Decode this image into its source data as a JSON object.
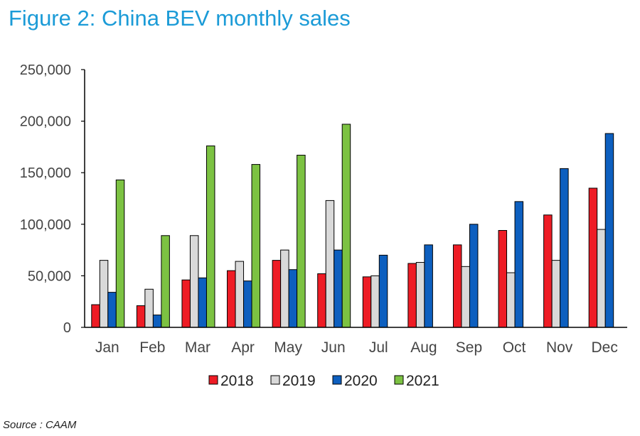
{
  "title": "Figure 2: China BEV monthly sales",
  "source": "Source : CAAM",
  "chart_data": {
    "type": "bar",
    "categories": [
      "Jan",
      "Feb",
      "Mar",
      "Apr",
      "May",
      "Jun",
      "Jul",
      "Aug",
      "Sep",
      "Oct",
      "Nov",
      "Dec"
    ],
    "series": [
      {
        "name": "2018",
        "color": "#ee1c25",
        "values": [
          22000,
          21000,
          46000,
          55000,
          65000,
          52000,
          49000,
          62000,
          80000,
          94000,
          109000,
          135000
        ]
      },
      {
        "name": "2019",
        "color": "#d9d9d9",
        "values": [
          65000,
          37000,
          89000,
          64000,
          75000,
          123000,
          50000,
          63000,
          59000,
          53000,
          65000,
          95000
        ]
      },
      {
        "name": "2020",
        "color": "#0d5fbf",
        "values": [
          34000,
          12000,
          48000,
          45000,
          56000,
          75000,
          70000,
          80000,
          100000,
          122000,
          154000,
          188000
        ]
      },
      {
        "name": "2021",
        "color": "#7cc242",
        "values": [
          143000,
          89000,
          176000,
          158000,
          167000,
          197000,
          null,
          null,
          null,
          null,
          null,
          null
        ]
      }
    ],
    "ylim": [
      0,
      250000
    ],
    "yticks": [
      "0",
      "50,000",
      "100,000",
      "150,000",
      "200,000",
      "250,000"
    ],
    "ytick_values": [
      0,
      50000,
      100000,
      150000,
      200000,
      250000
    ],
    "legend": "bottom",
    "grid": false
  }
}
